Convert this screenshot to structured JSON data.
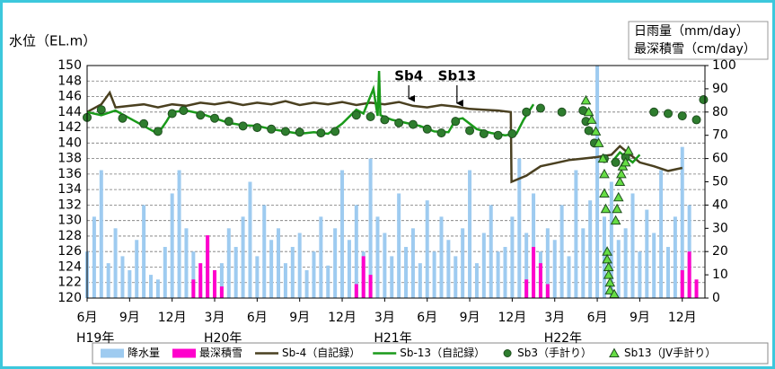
{
  "chart_data": {
    "type": "combo",
    "y_label": "水位（EL.m）",
    "y2_label": [
      "日雨量（mm/day）",
      "最深積雪（cm/day）"
    ],
    "xlim": [
      0,
      43.6
    ],
    "xticks": [
      {
        "value": 0,
        "label": "6月"
      },
      {
        "value": 3,
        "label": "9月"
      },
      {
        "value": 6,
        "label": "12月"
      },
      {
        "value": 9,
        "label": "3月"
      },
      {
        "value": 12,
        "label": "6月"
      },
      {
        "value": 15,
        "label": "9月"
      },
      {
        "value": 18,
        "label": "12月"
      },
      {
        "value": 21,
        "label": "3月"
      },
      {
        "value": 24,
        "label": "6月"
      },
      {
        "value": 27,
        "label": "9月"
      },
      {
        "value": 30,
        "label": "12月"
      },
      {
        "value": 33,
        "label": "3月"
      },
      {
        "value": 36,
        "label": "6月"
      },
      {
        "value": 39,
        "label": "9月"
      },
      {
        "value": 42,
        "label": "12月"
      }
    ],
    "year_labels": [
      {
        "value": 0,
        "label": "H19年"
      },
      {
        "value": 9,
        "label": "H20年"
      },
      {
        "value": 21,
        "label": "H21年"
      },
      {
        "value": 33,
        "label": "H22年"
      }
    ],
    "ylim": [
      120,
      150
    ],
    "yticks": [
      120,
      122,
      124,
      126,
      128,
      130,
      132,
      134,
      136,
      138,
      140,
      142,
      144,
      146,
      148,
      150
    ],
    "y2lim": [
      0,
      100
    ],
    "y2ticks": [
      0,
      10,
      20,
      30,
      40,
      50,
      60,
      70,
      80,
      90,
      100
    ],
    "grid": true,
    "annotations": [
      {
        "text": "Sb4",
        "x": 22.7,
        "y": 145.4
      },
      {
        "text": "Sb13",
        "x": 26.1,
        "y": 144.8
      }
    ],
    "series": [
      {
        "name": "降水量",
        "type": "bar",
        "axis": "y2",
        "color": "#9ecbf0",
        "x": [
          0,
          0.5,
          1,
          1.5,
          2,
          2.5,
          3,
          3.5,
          4,
          4.5,
          5,
          5.5,
          6,
          6.5,
          7,
          7.5,
          8,
          8.5,
          9,
          9.5,
          10,
          10.5,
          11,
          11.5,
          12,
          12.5,
          13,
          13.5,
          14,
          14.5,
          15,
          15.5,
          16,
          16.5,
          17,
          17.5,
          18,
          18.5,
          19,
          19.5,
          20,
          20.5,
          21,
          21.5,
          22,
          22.5,
          23,
          23.5,
          24,
          24.5,
          25,
          25.5,
          26,
          26.5,
          27,
          27.5,
          28,
          28.5,
          29,
          29.5,
          30,
          30.5,
          31,
          31.5,
          32,
          32.5,
          33,
          33.5,
          34,
          34.5,
          35,
          35.5,
          36,
          36.5,
          37,
          37.5,
          38,
          38.5,
          39,
          39.5,
          40,
          40.5,
          41,
          41.5,
          42,
          42.5
        ],
        "values": [
          20,
          35,
          55,
          15,
          30,
          18,
          12,
          25,
          40,
          10,
          8,
          22,
          45,
          55,
          30,
          20,
          10,
          25,
          8,
          15,
          30,
          22,
          35,
          50,
          18,
          40,
          25,
          30,
          15,
          22,
          28,
          12,
          20,
          35,
          14,
          30,
          55,
          25,
          40,
          20,
          60,
          35,
          28,
          18,
          45,
          22,
          30,
          15,
          42,
          20,
          35,
          25,
          18,
          30,
          55,
          15,
          28,
          40,
          20,
          22,
          35,
          60,
          28,
          45,
          20,
          30,
          25,
          40,
          18,
          55,
          30,
          42,
          100,
          35,
          50,
          25,
          30,
          45,
          20,
          38,
          28,
          55,
          22,
          35,
          65,
          40
        ]
      },
      {
        "name": "最深積雪",
        "type": "bar",
        "axis": "y2",
        "color": "#ff00cc",
        "x": [
          7.5,
          8,
          8.5,
          9,
          9.5,
          19,
          19.5,
          20,
          31,
          31.5,
          32,
          32.5,
          42,
          42.5,
          43
        ],
        "values": [
          8,
          15,
          27,
          12,
          5,
          6,
          18,
          10,
          8,
          22,
          15,
          6,
          12,
          20,
          8
        ]
      },
      {
        "name": "Sb-4（自記録）",
        "type": "line",
        "color": "#4a4020",
        "x": [
          0,
          1,
          1.6,
          2,
          3,
          4,
          5,
          6,
          7,
          8,
          9,
          10,
          11,
          12,
          13,
          14,
          15,
          16,
          17,
          18,
          19,
          20,
          21,
          22,
          23,
          24,
          25,
          26,
          27,
          28,
          29,
          29.9,
          29.95,
          31,
          32,
          33,
          34,
          35,
          36,
          37,
          37.6,
          38,
          39,
          40,
          41,
          42
        ],
        "values": [
          144,
          145,
          146.5,
          144.6,
          144.8,
          145,
          144.6,
          145,
          144.8,
          145.2,
          145,
          145.3,
          144.9,
          145.2,
          145,
          145.4,
          144.9,
          145.2,
          145,
          145.3,
          144.9,
          145.2,
          145,
          145.3,
          144.8,
          144.6,
          144.9,
          144.7,
          144.4,
          144.3,
          144.2,
          144,
          135,
          135.8,
          137,
          137.4,
          137.8,
          138,
          138.2,
          138.5,
          139.6,
          139,
          137.5,
          137,
          136.4,
          136.8
        ]
      },
      {
        "name": "Sb-13（自記録）",
        "type": "line",
        "color": "#1a9a1a",
        "x": [
          0,
          1,
          2,
          3,
          4,
          5,
          5.6,
          6,
          7,
          8,
          9,
          10,
          11,
          12,
          13,
          14,
          15,
          16,
          17,
          18,
          19,
          19.5,
          20.2,
          20.5,
          20.6,
          20.7,
          21.5,
          22.5,
          23.5,
          24.5,
          25.5,
          26,
          26.5,
          27.5,
          28.5,
          29.5,
          30.3,
          30.8,
          31.5,
          32,
          37,
          37.6,
          38.5,
          39
        ],
        "values": [
          144,
          143.6,
          144.2,
          143.2,
          142.2,
          141.2,
          142.8,
          144,
          144.2,
          143.8,
          143.2,
          142.6,
          142.3,
          142.2,
          141.8,
          141.5,
          141.2,
          141.4,
          141.2,
          142.5,
          144.3,
          143.8,
          147,
          143.5,
          149.3,
          143.6,
          143,
          142.6,
          142.2,
          141.5,
          141.4,
          143,
          143.2,
          141.8,
          141.3,
          141,
          141.2,
          143,
          145,
          null,
          137.5,
          138.8,
          137.5,
          138.5
        ]
      },
      {
        "name": "Sb3（手計り）",
        "type": "scatter",
        "marker": "circle",
        "color": "#2e7d2e",
        "x": [
          0,
          1,
          2.5,
          4,
          5,
          6,
          6.8,
          8,
          9,
          10,
          11,
          12,
          13,
          14,
          15,
          16.5,
          17.5,
          19,
          20,
          21,
          22,
          23,
          24,
          25,
          26,
          27,
          28,
          29,
          30,
          31,
          32,
          33.5,
          35,
          35.2,
          35.4,
          35.8,
          36.5,
          37.3,
          38,
          40,
          41,
          42,
          43,
          43.5
        ],
        "values": [
          143.3,
          144.3,
          143.2,
          142.5,
          141.5,
          143.8,
          144.2,
          143.6,
          143.2,
          142.8,
          142.2,
          142,
          141.8,
          141.5,
          141.4,
          141.3,
          141.5,
          143.6,
          143.4,
          143,
          142.6,
          142.4,
          141.8,
          141.3,
          142.8,
          141.6,
          141.2,
          141,
          141.2,
          144,
          144.5,
          144,
          144.2,
          142.8,
          141.6,
          140,
          138,
          137.5,
          138.2,
          144,
          143.8,
          143.5,
          143,
          145.6
        ]
      },
      {
        "name": "Sb13（JV手計り）",
        "type": "scatter",
        "marker": "triangle",
        "color": "#66dd44",
        "x": [
          35.2,
          35.4,
          35.6,
          35.9,
          36.1,
          36.4,
          36.5,
          36.5,
          36.6,
          36.7,
          36.7,
          36.8,
          36.8,
          36.9,
          36.9,
          37.2,
          37.3,
          37.4,
          37.5,
          37.6,
          37.7,
          37.8,
          38,
          38.2
        ],
        "values": [
          145.5,
          144,
          143,
          141.5,
          140,
          138,
          136,
          133.5,
          131.5,
          126,
          125,
          124,
          123,
          122,
          121,
          120.5,
          130,
          131.5,
          133,
          135,
          136,
          137,
          137.5,
          139
        ]
      }
    ]
  }
}
